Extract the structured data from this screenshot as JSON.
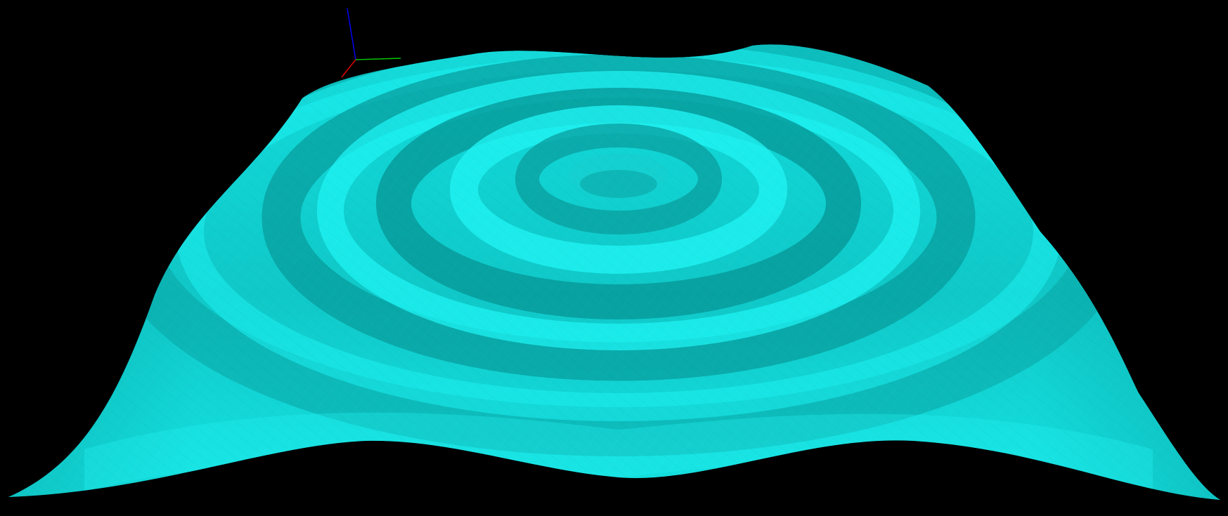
{
  "scene": {
    "background_color": "#000000",
    "surface_color": "#00e0e0",
    "axes": {
      "x_axis_color": "#ff0000",
      "y_axis_color": "#00cc00",
      "z_axis_color": "#0000ff"
    }
  }
}
